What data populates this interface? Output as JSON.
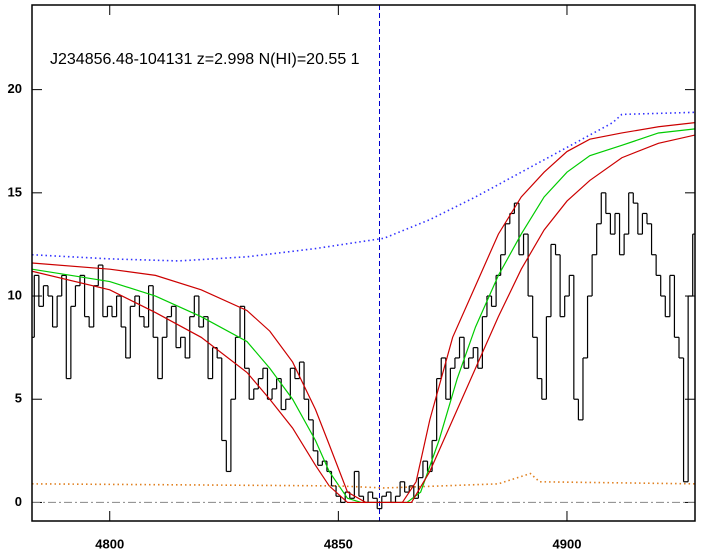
{
  "chart_data": {
    "type": "line",
    "title": "J234856.48-104131 z=2.998 N(HI)=20.55 1",
    "xlim": [
      4783,
      4928
    ],
    "ylim": [
      -0.9,
      24.1
    ],
    "xticks": [
      4800,
      4850,
      4900
    ],
    "yticks": [
      0,
      5,
      10,
      15,
      20
    ],
    "zero_line": 0,
    "vline": 4859,
    "series": [
      {
        "style": "steps",
        "color": "#000000",
        "x": [
          4783,
          4784,
          4785,
          4786,
          4787,
          4788,
          4789,
          4790,
          4791,
          4792,
          4793,
          4794,
          4795,
          4796,
          4797,
          4798,
          4799,
          4800,
          4801,
          4802,
          4803,
          4804,
          4805,
          4806,
          4807,
          4808,
          4809,
          4810,
          4811,
          4812,
          4813,
          4814,
          4815,
          4816,
          4817,
          4818,
          4819,
          4820,
          4821,
          4822,
          4823,
          4824,
          4825,
          4826,
          4827,
          4828,
          4829,
          4830,
          4831,
          4832,
          4833,
          4834,
          4835,
          4836,
          4837,
          4838,
          4839,
          4840,
          4841,
          4842,
          4843,
          4844,
          4845,
          4846,
          4847,
          4848,
          4849,
          4850,
          4851,
          4852,
          4853,
          4854,
          4855,
          4856,
          4857,
          4858,
          4859,
          4860,
          4861,
          4862,
          4863,
          4864,
          4865,
          4866,
          4867,
          4868,
          4869,
          4870,
          4871,
          4872,
          4873,
          4874,
          4875,
          4876,
          4877,
          4878,
          4879,
          4880,
          4881,
          4882,
          4883,
          4884,
          4885,
          4886,
          4887,
          4888,
          4889,
          4890,
          4891,
          4892,
          4893,
          4894,
          4895,
          4896,
          4897,
          4898,
          4899,
          4900,
          4901,
          4902,
          4903,
          4904,
          4905,
          4906,
          4907,
          4908,
          4909,
          4910,
          4911,
          4912,
          4913,
          4914,
          4915,
          4916,
          4917,
          4918,
          4919,
          4920,
          4921,
          4922,
          4923,
          4924,
          4925,
          4926,
          4927,
          4928
        ],
        "values": [
          8,
          11,
          9.5,
          10.5,
          10,
          8.5,
          10,
          11,
          6,
          9.5,
          10.5,
          11,
          9,
          8.5,
          10.5,
          11.5,
          9,
          9.5,
          9,
          10,
          8.5,
          7,
          9.5,
          10,
          9,
          8.5,
          10.5,
          8,
          6,
          8,
          9,
          9.5,
          7.5,
          8,
          7,
          9,
          10,
          8.5,
          9,
          6,
          7.5,
          7,
          3,
          1.5,
          5,
          8,
          9.5,
          6.5,
          5,
          5.5,
          6,
          6.5,
          5,
          5.5,
          6,
          4.5,
          5,
          6.5,
          6,
          6.8,
          5,
          4,
          2.5,
          1.8,
          2,
          1.5,
          0.8,
          0.3,
          0,
          0.5,
          0.2,
          1.5,
          0.3,
          0,
          0.5,
          0.2,
          -0.3,
          0.3,
          0.5,
          0,
          0.3,
          1,
          0.5,
          0.8,
          0.2,
          1.2,
          2,
          1.5,
          3,
          6,
          7,
          5,
          6.5,
          7,
          8,
          6.5,
          7,
          7.5,
          6.5,
          9,
          10,
          9.5,
          11,
          12,
          13.5,
          14,
          14.5,
          12,
          13,
          10,
          8,
          6,
          5,
          9,
          12.5,
          12,
          9,
          10,
          11,
          5,
          4,
          7,
          10,
          12,
          13.5,
          15,
          14,
          13,
          14,
          12,
          13,
          15,
          14.5,
          13,
          14,
          13.5,
          12,
          11,
          10,
          9,
          11,
          8,
          7,
          1,
          10,
          13
        ]
      },
      {
        "style": "line",
        "color": "#00cc00",
        "x": [
          4783,
          4800,
          4810,
          4820,
          4830,
          4835,
          4840,
          4845,
          4848,
          4852,
          4855,
          4865,
          4868,
          4872,
          4876,
          4880,
          4885,
          4890,
          4895,
          4900,
          4905,
          4912,
          4920,
          4928
        ],
        "values": [
          11.3,
          10.7,
          10,
          9,
          7.8,
          6.5,
          5,
          3,
          1.5,
          0.2,
          0,
          0,
          0.5,
          3,
          6,
          8.5,
          11,
          13,
          14.8,
          16,
          16.8,
          17.3,
          17.9,
          18.1
        ]
      },
      {
        "style": "line",
        "color": "#cc0000",
        "x": [
          4783,
          4800,
          4810,
          4820,
          4830,
          4835,
          4840,
          4845,
          4848,
          4852,
          4856,
          4864,
          4867,
          4870,
          4875,
          4880,
          4885,
          4890,
          4895,
          4900,
          4905,
          4912,
          4920,
          4928
        ],
        "values": [
          11.6,
          11.3,
          11,
          10.3,
          9.3,
          8.3,
          6.8,
          4.5,
          2.8,
          0.5,
          0,
          0,
          1,
          4,
          8,
          10.5,
          13,
          14.8,
          16,
          17,
          17.6,
          17.9,
          18.2,
          18.4
        ]
      },
      {
        "style": "line",
        "color": "#cc0000",
        "x": [
          4783,
          4800,
          4810,
          4820,
          4830,
          4835,
          4840,
          4845,
          4848,
          4852,
          4866,
          4870,
          4875,
          4880,
          4885,
          4890,
          4895,
          4900,
          4905,
          4912,
          4920,
          4928
        ],
        "values": [
          11.2,
          10.3,
          9.2,
          8,
          6.3,
          5,
          3.6,
          1.8,
          0.8,
          0,
          0,
          1.5,
          4,
          6.5,
          9,
          11.3,
          13.2,
          14.6,
          15.6,
          16.7,
          17.4,
          17.8
        ]
      },
      {
        "style": "dotted",
        "color": "#3333ff",
        "x": [
          4783,
          4800,
          4815,
          4830,
          4845,
          4860,
          4870,
          4880,
          4890,
          4900,
          4910,
          4912,
          4928
        ],
        "values": [
          12,
          11.8,
          11.7,
          11.9,
          12.3,
          12.8,
          13.7,
          14.8,
          16,
          17.2,
          18.4,
          18.8,
          18.9
        ]
      },
      {
        "style": "dotted",
        "color": "#e08020",
        "x": [
          4783,
          4850,
          4860,
          4885,
          4892,
          4894,
          4928
        ],
        "values": [
          0.9,
          0.8,
          0.7,
          0.9,
          1.4,
          1.0,
          0.9
        ]
      }
    ]
  }
}
